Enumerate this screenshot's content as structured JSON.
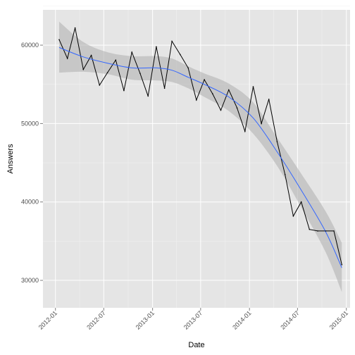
{
  "chart_data": {
    "type": "line",
    "title": "",
    "xlabel": "Date",
    "ylabel": "Answers",
    "x_tick_labels": [
      "2012-01",
      "2012-07",
      "2013-01",
      "2013-07",
      "2014-01",
      "2014-07",
      "2015-01"
    ],
    "y_tick_labels": [
      "30000",
      "40000",
      "50000",
      "60000"
    ],
    "xlim": [
      "2011-11-15",
      "2015-01-15"
    ],
    "ylim": [
      26500,
      64500
    ],
    "grid": true,
    "legend": "none",
    "colors": {
      "panel_background": "#e5e5e5",
      "grid_major": "#ffffff",
      "grid_minor": "#f2f2f2",
      "raw_line": "#000000",
      "smooth_line": "#3366ff",
      "confidence_band": "#b3b3b3"
    },
    "series": [
      {
        "type": "line",
        "x": [
          "2012-01-15",
          "2012-02-15",
          "2012-03-15",
          "2012-04-15",
          "2012-05-15",
          "2012-06-15",
          "2012-07-15",
          "2012-08-15",
          "2012-09-15",
          "2012-10-15",
          "2012-11-15",
          "2012-12-15",
          "2013-01-15",
          "2013-02-15",
          "2013-03-15",
          "2013-04-15",
          "2013-05-15",
          "2013-06-15",
          "2013-07-15",
          "2013-08-15",
          "2013-09-15",
          "2013-10-15",
          "2013-11-15",
          "2013-12-15",
          "2014-01-15",
          "2014-02-15",
          "2014-03-15",
          "2014-04-15",
          "2014-05-15",
          "2014-06-15",
          "2014-07-15",
          "2014-08-15",
          "2014-09-15",
          "2014-10-15",
          "2014-11-15",
          "2014-12-15"
        ],
        "values": [
          60700,
          58300,
          62200,
          56900,
          58700,
          54900,
          56500,
          58100,
          54200,
          59100,
          56400,
          53500,
          59800,
          54500,
          60500,
          58800,
          57100,
          53000,
          55600,
          53800,
          51700,
          54300,
          52000,
          49000,
          54700,
          50000,
          53100,
          47700,
          43500,
          38200,
          40000,
          36500,
          36300,
          36300,
          36300,
          32000
        ]
      },
      {
        "type": "smooth",
        "x": [
          "2012-01-15",
          "2012-04-15",
          "2012-07-15",
          "2012-10-15",
          "2013-01-15",
          "2013-03-15",
          "2013-05-15",
          "2013-07-15",
          "2013-10-15",
          "2014-01-15",
          "2014-04-15",
          "2014-07-15",
          "2014-10-15",
          "2014-12-15"
        ],
        "values": [
          59700,
          58500,
          57700,
          57100,
          57100,
          56800,
          55900,
          55000,
          53400,
          50700,
          46400,
          41500,
          36200,
          31600
        ],
        "lower": [
          56500,
          56600,
          56300,
          55600,
          55500,
          55300,
          54500,
          53400,
          51600,
          48700,
          44600,
          39300,
          33600,
          28500
        ],
        "upper": [
          63000,
          60400,
          59100,
          58600,
          58600,
          58300,
          57300,
          56400,
          55100,
          52700,
          48200,
          43600,
          38800,
          34800
        ]
      }
    ]
  }
}
